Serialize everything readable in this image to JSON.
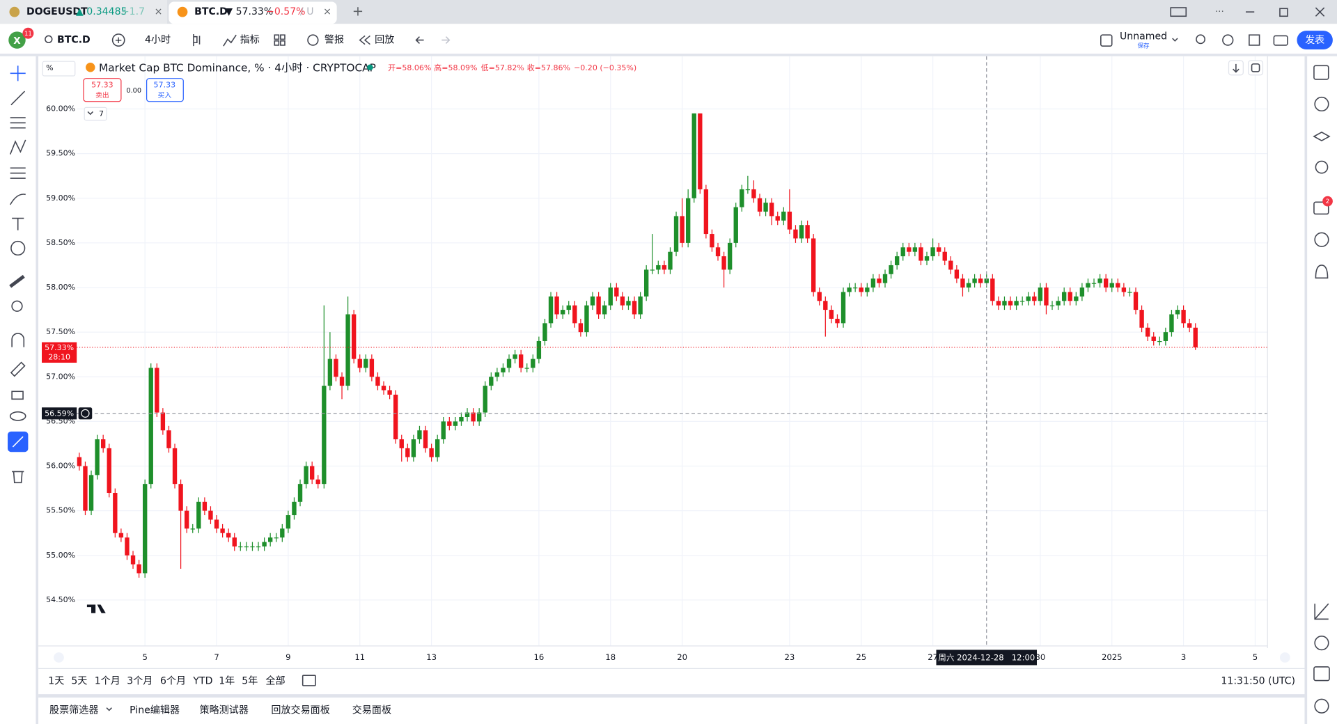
{
  "tabs": [
    {
      "symbol": "DOGEUSDT",
      "price": "▲ 0.34485",
      "change": "+1.7"
    },
    {
      "symbol": "BTC.D",
      "price": "▼ 57.33%",
      "change": "−0.57%",
      "rest": "/ U"
    }
  ],
  "avatar": "X",
  "badges": {
    "avatar": "11",
    "chat": "2"
  },
  "toolbar": {
    "symbol": "BTC.D",
    "interval": "4小时",
    "indicators": "指标",
    "alerts": "警报",
    "replay": "回放",
    "layout_name": "Unnamed",
    "save": "保存",
    "publish": "发表"
  },
  "legend": {
    "title": "Market Cap BTC Dominance, % · 4小时 · CRYPTOCAP",
    "ohlc": [
      "开=58.06%",
      "高=58.09%",
      "低=57.82%",
      "收=57.86%"
    ],
    "change": "−0.20 (−0.35%)",
    "sell_price": "57.33",
    "sell": "卖出",
    "spread": "0.00",
    "buy_price": "57.33",
    "buy": "买入",
    "indicators_count": "7"
  },
  "scale_mode": "%",
  "chart_data": {
    "type": "candlestick",
    "up_color": "#1e8f2b",
    "down_color": "#f0141e",
    "grid": true,
    "xlim": [
      -6.43,
      199
    ],
    "ylim": [
      53.99,
      60.59
    ],
    "yticks": [
      {
        "value": 54.5,
        "label": "54.50%"
      },
      {
        "value": 55,
        "label": "55.00%"
      },
      {
        "value": 55.5,
        "label": "55.50%"
      },
      {
        "value": 56,
        "label": "56.00%"
      },
      {
        "value": 56.5,
        "label": "56.50%"
      },
      {
        "value": 57,
        "label": "57.00%"
      },
      {
        "value": 57.5,
        "label": "57.50%"
      },
      {
        "value": 58,
        "label": "58.00%"
      },
      {
        "value": 58.5,
        "label": "58.50%"
      },
      {
        "value": 59,
        "label": "59.00%"
      },
      {
        "value": 59.5,
        "label": "59.50%"
      },
      {
        "value": 60,
        "label": "60.00%"
      }
    ],
    "xticks": [
      {
        "value": 11,
        "label": "5"
      },
      {
        "value": 23,
        "label": "7"
      },
      {
        "value": 35,
        "label": "9"
      },
      {
        "value": 47,
        "label": "11"
      },
      {
        "value": 59,
        "label": "13"
      },
      {
        "value": 77,
        "label": "16"
      },
      {
        "value": 89,
        "label": "18"
      },
      {
        "value": 101,
        "label": "20"
      },
      {
        "value": 119,
        "label": "23"
      },
      {
        "value": 131,
        "label": "25"
      },
      {
        "value": 143,
        "label": "27"
      },
      {
        "value": 161,
        "label": "30"
      },
      {
        "value": 173,
        "label": "2025"
      },
      {
        "value": 185,
        "label": "3"
      },
      {
        "value": 197,
        "label": "5"
      }
    ],
    "last_price": {
      "value": 57.33,
      "label": "57.33%"
    },
    "countdown": "28:10",
    "crosshair": {
      "price": {
        "value": 56.59,
        "label": "56.59%"
      },
      "time": {
        "value": 152,
        "label": "周六 2024-12-28   12:00"
      }
    },
    "candles": [
      [
        56.1,
        56.15,
        55.95,
        56.0
      ],
      [
        56.0,
        56.05,
        55.45,
        55.5
      ],
      [
        55.5,
        55.95,
        55.45,
        55.9
      ],
      [
        55.9,
        56.35,
        55.85,
        56.3
      ],
      [
        56.3,
        56.35,
        56.15,
        56.2
      ],
      [
        56.2,
        56.25,
        55.65,
        55.7
      ],
      [
        55.7,
        55.75,
        55.2,
        55.25
      ],
      [
        55.25,
        55.3,
        55.15,
        55.2
      ],
      [
        55.2,
        55.25,
        54.95,
        55.0
      ],
      [
        55.0,
        55.05,
        54.85,
        54.9
      ],
      [
        54.9,
        54.95,
        54.75,
        54.8
      ],
      [
        54.8,
        55.85,
        54.75,
        55.8
      ],
      [
        55.8,
        57.15,
        55.75,
        57.1
      ],
      [
        57.1,
        57.15,
        56.55,
        56.6
      ],
      [
        56.6,
        56.65,
        56.35,
        56.4
      ],
      [
        56.4,
        56.45,
        56.15,
        56.2
      ],
      [
        56.2,
        56.25,
        55.75,
        55.8
      ],
      [
        55.8,
        55.85,
        54.85,
        55.5
      ],
      [
        55.5,
        55.55,
        55.25,
        55.3
      ],
      [
        55.3,
        55.35,
        55.25,
        55.3
      ],
      [
        55.3,
        55.65,
        55.25,
        55.6
      ],
      [
        55.6,
        55.65,
        55.45,
        55.5
      ],
      [
        55.5,
        55.55,
        55.35,
        55.4
      ],
      [
        55.4,
        55.45,
        55.25,
        55.3
      ],
      [
        55.3,
        55.35,
        55.2,
        55.25
      ],
      [
        55.25,
        55.3,
        55.15,
        55.2
      ],
      [
        55.2,
        55.25,
        55.05,
        55.1
      ],
      [
        55.1,
        55.15,
        55.05,
        55.1
      ],
      [
        55.1,
        55.15,
        55.05,
        55.1
      ],
      [
        55.1,
        55.15,
        55.05,
        55.1
      ],
      [
        55.1,
        55.15,
        55.05,
        55.1
      ],
      [
        55.1,
        55.2,
        55.05,
        55.15
      ],
      [
        55.15,
        55.25,
        55.1,
        55.2
      ],
      [
        55.2,
        55.25,
        55.15,
        55.2
      ],
      [
        55.2,
        55.35,
        55.15,
        55.3
      ],
      [
        55.3,
        55.5,
        55.25,
        55.45
      ],
      [
        55.45,
        55.65,
        55.4,
        55.6
      ],
      [
        55.6,
        55.85,
        55.55,
        55.8
      ],
      [
        55.8,
        56.05,
        55.75,
        56.0
      ],
      [
        56.0,
        56.05,
        55.8,
        55.85
      ],
      [
        55.85,
        55.9,
        55.75,
        55.8
      ],
      [
        55.8,
        57.8,
        55.75,
        56.9
      ],
      [
        56.9,
        57.5,
        56.85,
        57.2
      ],
      [
        57.2,
        57.25,
        56.95,
        57.0
      ],
      [
        57.0,
        57.05,
        56.75,
        56.9
      ],
      [
        56.9,
        57.9,
        56.85,
        57.7
      ],
      [
        57.7,
        57.75,
        57.15,
        57.2
      ],
      [
        57.2,
        57.25,
        57.05,
        57.1
      ],
      [
        57.1,
        57.25,
        57.05,
        57.2
      ],
      [
        57.2,
        57.25,
        56.95,
        57.0
      ],
      [
        57.0,
        57.05,
        56.85,
        56.9
      ],
      [
        56.9,
        56.95,
        56.8,
        56.85
      ],
      [
        56.85,
        56.9,
        56.75,
        56.8
      ],
      [
        56.8,
        56.85,
        56.25,
        56.3
      ],
      [
        56.3,
        56.35,
        56.05,
        56.2
      ],
      [
        56.2,
        56.25,
        56.05,
        56.1
      ],
      [
        56.1,
        56.35,
        56.05,
        56.3
      ],
      [
        56.3,
        56.45,
        56.25,
        56.4
      ],
      [
        56.4,
        56.45,
        56.15,
        56.2
      ],
      [
        56.2,
        56.25,
        56.05,
        56.1
      ],
      [
        56.1,
        56.35,
        56.05,
        56.3
      ],
      [
        56.3,
        56.55,
        56.25,
        56.5
      ],
      [
        56.5,
        56.55,
        56.4,
        56.45
      ],
      [
        56.45,
        56.55,
        56.4,
        56.5
      ],
      [
        56.5,
        56.6,
        56.45,
        56.55
      ],
      [
        56.55,
        56.65,
        56.5,
        56.6
      ],
      [
        56.6,
        56.65,
        56.45,
        56.5
      ],
      [
        56.5,
        56.65,
        56.45,
        56.6
      ],
      [
        56.6,
        56.95,
        56.55,
        56.9
      ],
      [
        56.9,
        57.05,
        56.85,
        57.0
      ],
      [
        57.0,
        57.1,
        56.95,
        57.05
      ],
      [
        57.05,
        57.15,
        57.0,
        57.1
      ],
      [
        57.1,
        57.25,
        57.05,
        57.2
      ],
      [
        57.2,
        57.3,
        57.15,
        57.25
      ],
      [
        57.25,
        57.3,
        57.05,
        57.1
      ],
      [
        57.1,
        57.15,
        57.05,
        57.1
      ],
      [
        57.1,
        57.25,
        57.05,
        57.2
      ],
      [
        57.2,
        57.45,
        57.15,
        57.4
      ],
      [
        57.4,
        57.65,
        57.35,
        57.6
      ],
      [
        57.6,
        57.95,
        57.55,
        57.9
      ],
      [
        57.9,
        57.95,
        57.65,
        57.7
      ],
      [
        57.7,
        57.8,
        57.65,
        57.75
      ],
      [
        57.75,
        57.85,
        57.7,
        57.8
      ],
      [
        57.8,
        57.85,
        57.55,
        57.6
      ],
      [
        57.6,
        57.65,
        57.45,
        57.5
      ],
      [
        57.5,
        57.85,
        57.45,
        57.8
      ],
      [
        57.8,
        57.95,
        57.75,
        57.9
      ],
      [
        57.9,
        57.95,
        57.65,
        57.7
      ],
      [
        57.7,
        57.85,
        57.65,
        57.8
      ],
      [
        57.8,
        58.05,
        57.75,
        58.0
      ],
      [
        58.0,
        58.05,
        57.85,
        57.9
      ],
      [
        57.9,
        57.95,
        57.75,
        57.8
      ],
      [
        57.8,
        57.9,
        57.75,
        57.85
      ],
      [
        57.85,
        57.9,
        57.65,
        57.7
      ],
      [
        57.7,
        57.95,
        57.65,
        57.9
      ],
      [
        57.9,
        58.25,
        57.85,
        58.2
      ],
      [
        58.2,
        58.6,
        58.15,
        58.2
      ],
      [
        58.2,
        58.3,
        58.15,
        58.25
      ],
      [
        58.25,
        58.3,
        58.15,
        58.2
      ],
      [
        58.2,
        58.45,
        58.15,
        58.4
      ],
      [
        58.4,
        58.85,
        58.35,
        58.8
      ],
      [
        58.8,
        59.0,
        58.45,
        58.5
      ],
      [
        58.5,
        59.1,
        58.45,
        59.0
      ],
      [
        59.0,
        59.95,
        58.95,
        59.95
      ],
      [
        59.95,
        59.95,
        59.05,
        59.1
      ],
      [
        59.1,
        59.15,
        58.55,
        58.6
      ],
      [
        58.6,
        58.65,
        58.4,
        58.45
      ],
      [
        58.45,
        58.5,
        58.3,
        58.35
      ],
      [
        58.35,
        58.4,
        58.0,
        58.2
      ],
      [
        58.2,
        58.55,
        58.15,
        58.5
      ],
      [
        58.5,
        58.95,
        58.45,
        58.9
      ],
      [
        58.9,
        59.15,
        58.85,
        59.1
      ],
      [
        59.1,
        59.25,
        59.05,
        59.1
      ],
      [
        59.1,
        59.2,
        58.95,
        59.0
      ],
      [
        59.0,
        59.05,
        58.8,
        58.85
      ],
      [
        58.85,
        59.0,
        58.8,
        58.95
      ],
      [
        58.95,
        59.0,
        58.7,
        58.8
      ],
      [
        58.8,
        58.85,
        58.7,
        58.75
      ],
      [
        58.75,
        58.9,
        58.7,
        58.85
      ],
      [
        58.85,
        59.1,
        58.6,
        58.65
      ],
      [
        58.65,
        58.7,
        58.5,
        58.55
      ],
      [
        58.55,
        58.75,
        58.5,
        58.7
      ],
      [
        58.7,
        58.75,
        58.5,
        58.55
      ],
      [
        58.55,
        58.6,
        57.9,
        57.95
      ],
      [
        57.95,
        58.0,
        57.8,
        57.85
      ],
      [
        57.85,
        57.9,
        57.45,
        57.75
      ],
      [
        57.75,
        57.8,
        57.6,
        57.65
      ],
      [
        57.65,
        57.7,
        57.55,
        57.6
      ],
      [
        57.6,
        58.0,
        57.55,
        57.95
      ],
      [
        57.95,
        58.05,
        57.9,
        58.0
      ],
      [
        58.0,
        58.05,
        57.95,
        58.0
      ],
      [
        58.0,
        58.05,
        57.9,
        57.95
      ],
      [
        57.95,
        58.05,
        57.9,
        58.0
      ],
      [
        58.0,
        58.15,
        57.95,
        58.1
      ],
      [
        58.1,
        58.15,
        58.0,
        58.05
      ],
      [
        58.05,
        58.2,
        58.0,
        58.15
      ],
      [
        58.15,
        58.3,
        58.1,
        58.25
      ],
      [
        58.25,
        58.4,
        58.2,
        58.35
      ],
      [
        58.35,
        58.5,
        58.3,
        58.45
      ],
      [
        58.45,
        58.5,
        58.35,
        58.4
      ],
      [
        58.4,
        58.5,
        58.35,
        58.45
      ],
      [
        58.45,
        58.5,
        58.25,
        58.3
      ],
      [
        58.3,
        58.4,
        58.25,
        58.35
      ],
      [
        58.35,
        58.55,
        58.3,
        58.45
      ],
      [
        58.45,
        58.5,
        58.35,
        58.4
      ],
      [
        58.4,
        58.45,
        58.25,
        58.3
      ],
      [
        58.3,
        58.35,
        58.15,
        58.2
      ],
      [
        58.2,
        58.25,
        58.05,
        58.1
      ],
      [
        58.1,
        58.15,
        57.9,
        58.0
      ],
      [
        58.0,
        58.1,
        57.95,
        58.05
      ],
      [
        58.05,
        58.15,
        58.0,
        58.1
      ],
      [
        58.1,
        58.15,
        58.0,
        58.05
      ],
      [
        58.05,
        58.15,
        58.0,
        58.1
      ],
      [
        58.1,
        58.15,
        57.8,
        57.85
      ],
      [
        57.85,
        57.9,
        57.75,
        57.8
      ],
      [
        57.8,
        57.9,
        57.75,
        57.85
      ],
      [
        57.85,
        57.9,
        57.75,
        57.8
      ],
      [
        57.8,
        57.9,
        57.75,
        57.85
      ],
      [
        57.85,
        57.9,
        57.8,
        57.85
      ],
      [
        57.85,
        57.95,
        57.8,
        57.9
      ],
      [
        57.9,
        57.95,
        57.8,
        57.85
      ],
      [
        57.85,
        58.05,
        57.8,
        58.0
      ],
      [
        58.0,
        58.05,
        57.7,
        57.8
      ],
      [
        57.8,
        57.85,
        57.75,
        57.8
      ],
      [
        57.8,
        57.9,
        57.75,
        57.85
      ],
      [
        57.85,
        58.0,
        57.8,
        57.95
      ],
      [
        57.95,
        58.0,
        57.8,
        57.85
      ],
      [
        57.85,
        57.95,
        57.8,
        57.9
      ],
      [
        57.9,
        58.05,
        57.85,
        58.0
      ],
      [
        58.0,
        58.1,
        57.95,
        58.05
      ],
      [
        58.05,
        58.1,
        58.0,
        58.05
      ],
      [
        58.05,
        58.15,
        58.0,
        58.1
      ],
      [
        58.1,
        58.15,
        57.95,
        58.0
      ],
      [
        58.0,
        58.1,
        57.95,
        58.05
      ],
      [
        58.05,
        58.1,
        57.95,
        58.0
      ],
      [
        58.0,
        58.05,
        57.9,
        57.95
      ],
      [
        57.95,
        58.0,
        57.9,
        57.95
      ],
      [
        57.95,
        58.0,
        57.7,
        57.75
      ],
      [
        57.75,
        57.8,
        57.5,
        57.55
      ],
      [
        57.55,
        57.6,
        57.4,
        57.45
      ],
      [
        57.45,
        57.5,
        57.35,
        57.4
      ],
      [
        57.4,
        57.45,
        57.35,
        57.4
      ],
      [
        57.4,
        57.55,
        57.35,
        57.5
      ],
      [
        57.5,
        57.75,
        57.45,
        57.7
      ],
      [
        57.7,
        57.8,
        57.65,
        57.75
      ],
      [
        57.75,
        57.8,
        57.55,
        57.6
      ],
      [
        57.6,
        57.65,
        57.5,
        57.55
      ],
      [
        57.55,
        57.6,
        57.3,
        57.33
      ]
    ]
  },
  "range_buttons": [
    "1天",
    "5天",
    "1个月",
    "3个月",
    "6个月",
    "YTD",
    "1年",
    "5年",
    "全部"
  ],
  "clock": "11:31:50 (UTC)",
  "bottom_tabs": [
    "股票筛选器",
    "Pine编辑器",
    "策略测试器",
    "回放交易面板",
    "交易面板"
  ]
}
